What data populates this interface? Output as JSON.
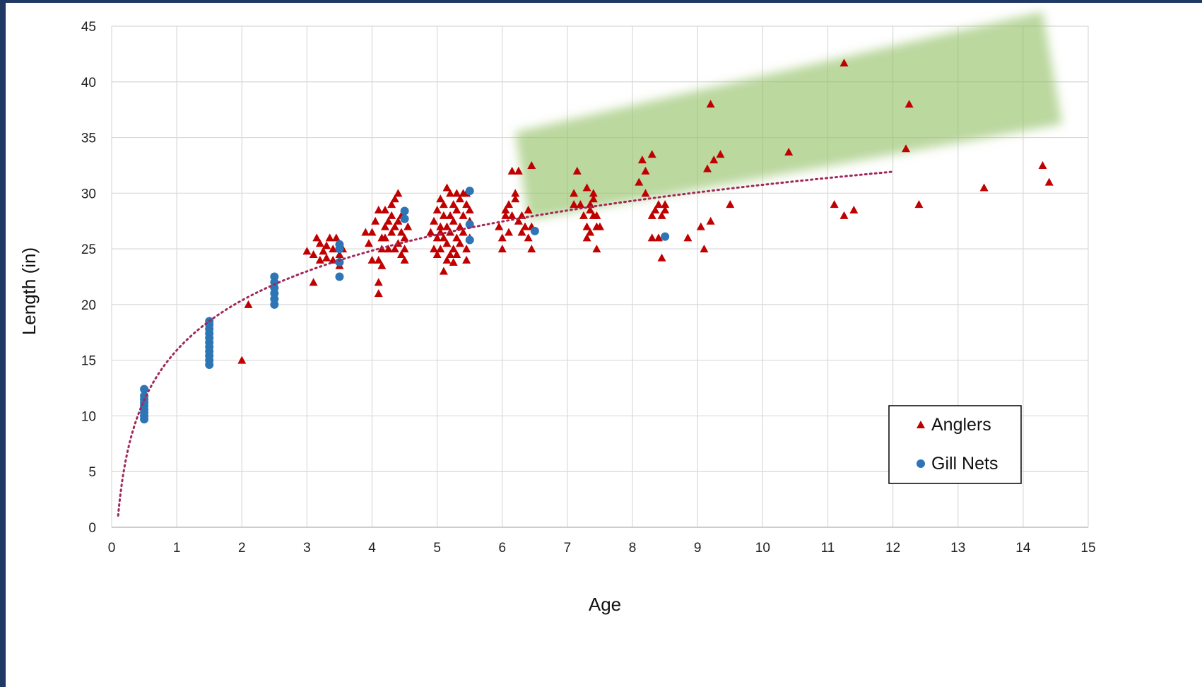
{
  "chart_data": {
    "type": "scatter",
    "title": "",
    "xlabel": "Age",
    "ylabel": "Length (in)",
    "xlim": [
      0,
      15
    ],
    "ylim": [
      0,
      45
    ],
    "xticks": [
      "0",
      "1",
      "2",
      "3",
      "4",
      "5",
      "6",
      "7",
      "8",
      "9",
      "10",
      "11",
      "12",
      "13",
      "14",
      "15"
    ],
    "yticks": [
      "0",
      "5",
      "10",
      "15",
      "20",
      "25",
      "30",
      "35",
      "40",
      "45"
    ],
    "grid": true,
    "legend": {
      "placement": "bottom-right",
      "entries": [
        "Anglers",
        "Gill Nets"
      ]
    },
    "colors": {
      "anglers": "#c00000",
      "gill_nets": "#2e75b6",
      "trendline": "#a0285a",
      "highlight": "#92c064"
    },
    "trendline": {
      "type": "logarithmic",
      "style": "dotted",
      "x_range": [
        0.1,
        12
      ]
    },
    "highlight_band": {
      "color": "#92c064",
      "corners": [
        [
          6.2,
          35.5
        ],
        [
          14.3,
          46.3
        ],
        [
          14.6,
          36.2
        ],
        [
          6.4,
          27.6
        ]
      ]
    },
    "series": [
      {
        "name": "Anglers",
        "marker": "triangle",
        "points": [
          [
            2,
            15
          ],
          [
            2.1,
            20
          ],
          [
            3,
            24.8
          ],
          [
            3.1,
            22
          ],
          [
            3.1,
            24.5
          ],
          [
            3.15,
            26
          ],
          [
            3.2,
            25.5
          ],
          [
            3.2,
            24
          ],
          [
            3.25,
            24.8
          ],
          [
            3.3,
            25.3
          ],
          [
            3.3,
            24.2
          ],
          [
            3.35,
            26
          ],
          [
            3.4,
            25
          ],
          [
            3.4,
            24
          ],
          [
            3.45,
            26
          ],
          [
            3.5,
            24.5
          ],
          [
            3.5,
            23.5
          ],
          [
            3.55,
            25
          ],
          [
            3.9,
            26.5
          ],
          [
            3.95,
            25.5
          ],
          [
            4,
            26.5
          ],
          [
            4,
            24
          ],
          [
            4.05,
            27.5
          ],
          [
            4.1,
            28.5
          ],
          [
            4.1,
            22
          ],
          [
            4.1,
            21
          ],
          [
            4.1,
            24
          ],
          [
            4.15,
            26
          ],
          [
            4.15,
            25
          ],
          [
            4.2,
            27
          ],
          [
            4.2,
            28.5
          ],
          [
            4.2,
            26
          ],
          [
            4.25,
            25
          ],
          [
            4.25,
            27.5
          ],
          [
            4.3,
            26.5
          ],
          [
            4.3,
            28
          ],
          [
            4.35,
            27
          ],
          [
            4.35,
            29.5
          ],
          [
            4.35,
            25
          ],
          [
            4.4,
            27.5
          ],
          [
            4.4,
            30
          ],
          [
            4.4,
            25.5
          ],
          [
            4.45,
            26.5
          ],
          [
            4.45,
            28
          ],
          [
            4.45,
            24.5
          ],
          [
            4.5,
            25
          ],
          [
            4.5,
            24
          ],
          [
            4.5,
            26
          ],
          [
            4.55,
            27
          ],
          [
            4.3,
            29
          ],
          [
            4.15,
            23.5
          ],
          [
            4.9,
            26.5
          ],
          [
            4.95,
            27.5
          ],
          [
            5,
            24.5
          ],
          [
            5,
            26
          ],
          [
            5,
            28.5
          ],
          [
            5.05,
            25
          ],
          [
            5.05,
            27
          ],
          [
            5.05,
            29.5
          ],
          [
            5.1,
            23
          ],
          [
            5.1,
            26
          ],
          [
            5.1,
            28
          ],
          [
            5.1,
            29
          ],
          [
            5.15,
            24
          ],
          [
            5.15,
            27
          ],
          [
            5.15,
            30.5
          ],
          [
            5.15,
            25.5
          ],
          [
            5.2,
            28
          ],
          [
            5.2,
            26.5
          ],
          [
            5.2,
            30
          ],
          [
            5.2,
            24.5
          ],
          [
            5.25,
            29
          ],
          [
            5.25,
            27.5
          ],
          [
            5.25,
            25
          ],
          [
            5.3,
            28.5
          ],
          [
            5.3,
            26
          ],
          [
            5.3,
            30
          ],
          [
            5.3,
            24.5
          ],
          [
            5.35,
            29.5
          ],
          [
            5.35,
            27
          ],
          [
            5.35,
            25.5
          ],
          [
            5.4,
            28
          ],
          [
            5.4,
            26.5
          ],
          [
            5.4,
            30
          ],
          [
            5.45,
            25
          ],
          [
            5.45,
            29
          ],
          [
            5.45,
            24
          ],
          [
            5.5,
            27.5
          ],
          [
            5.5,
            26
          ],
          [
            5.5,
            28.5
          ],
          [
            5.45,
            30
          ],
          [
            5.05,
            26.5
          ],
          [
            5.25,
            23.8
          ],
          [
            4.95,
            25
          ],
          [
            5.95,
            27
          ],
          [
            6,
            25
          ],
          [
            6,
            26
          ],
          [
            6.05,
            28.5
          ],
          [
            6.05,
            28
          ],
          [
            6.1,
            29
          ],
          [
            6.1,
            26.5
          ],
          [
            6.15,
            28
          ],
          [
            6.15,
            32
          ],
          [
            6.2,
            29.5
          ],
          [
            6.2,
            30
          ],
          [
            6.25,
            32
          ],
          [
            6.25,
            27.5
          ],
          [
            6.3,
            26.5
          ],
          [
            6.3,
            28
          ],
          [
            6.35,
            27
          ],
          [
            6.4,
            26
          ],
          [
            6.4,
            28.5
          ],
          [
            6.45,
            25
          ],
          [
            6.45,
            27
          ],
          [
            6.45,
            32.5
          ],
          [
            7.1,
            29
          ],
          [
            7.1,
            30
          ],
          [
            7.15,
            32
          ],
          [
            7.2,
            29
          ],
          [
            7.25,
            28
          ],
          [
            7.3,
            27
          ],
          [
            7.3,
            26
          ],
          [
            7.3,
            30.5
          ],
          [
            7.35,
            28.5
          ],
          [
            7.35,
            29
          ],
          [
            7.35,
            26.5
          ],
          [
            7.4,
            29.5
          ],
          [
            7.4,
            28
          ],
          [
            7.4,
            30
          ],
          [
            7.45,
            28
          ],
          [
            7.45,
            27
          ],
          [
            7.45,
            25
          ],
          [
            7.5,
            27
          ],
          [
            8.1,
            31
          ],
          [
            8.15,
            33
          ],
          [
            8.2,
            30
          ],
          [
            8.2,
            32
          ],
          [
            8.3,
            33.5
          ],
          [
            8.3,
            28
          ],
          [
            8.3,
            26
          ],
          [
            8.35,
            28.5
          ],
          [
            8.4,
            29
          ],
          [
            8.4,
            26
          ],
          [
            8.45,
            28
          ],
          [
            8.45,
            24.2
          ],
          [
            8.5,
            29
          ],
          [
            8.5,
            28.5
          ],
          [
            8.85,
            26
          ],
          [
            9.05,
            27
          ],
          [
            9.1,
            25
          ],
          [
            9.15,
            32.2
          ],
          [
            9.2,
            27.5
          ],
          [
            9.2,
            38
          ],
          [
            9.25,
            33
          ],
          [
            9.35,
            33.5
          ],
          [
            9.5,
            29
          ],
          [
            10.4,
            33.7
          ],
          [
            11.1,
            29
          ],
          [
            11.25,
            28
          ],
          [
            11.25,
            41.7
          ],
          [
            11.4,
            28.5
          ],
          [
            12.2,
            34
          ],
          [
            12.25,
            38
          ],
          [
            12.4,
            29
          ],
          [
            13.4,
            30.5
          ],
          [
            14.3,
            32.5
          ],
          [
            14.4,
            31
          ]
        ]
      },
      {
        "name": "Gill Nets",
        "marker": "circle",
        "points": [
          [
            0.5,
            9.7
          ],
          [
            0.5,
            10
          ],
          [
            0.5,
            10.3
          ],
          [
            0.5,
            10.6
          ],
          [
            0.5,
            10.9
          ],
          [
            0.5,
            11.2
          ],
          [
            0.5,
            11.5
          ],
          [
            0.5,
            11.8
          ],
          [
            0.5,
            12.4
          ],
          [
            1.5,
            14.6
          ],
          [
            1.5,
            15
          ],
          [
            1.5,
            15.4
          ],
          [
            1.5,
            15.8
          ],
          [
            1.5,
            16.2
          ],
          [
            1.5,
            16.6
          ],
          [
            1.5,
            17
          ],
          [
            1.5,
            17.4
          ],
          [
            1.5,
            17.8
          ],
          [
            1.5,
            18.2
          ],
          [
            1.5,
            18.5
          ],
          [
            2.5,
            20
          ],
          [
            2.5,
            20.5
          ],
          [
            2.5,
            21
          ],
          [
            2.5,
            21.5
          ],
          [
            2.5,
            22
          ],
          [
            2.5,
            22.5
          ],
          [
            3.5,
            22.5
          ],
          [
            3.5,
            23.8
          ],
          [
            3.5,
            25
          ],
          [
            3.5,
            25.4
          ],
          [
            4.5,
            27.7
          ],
          [
            4.5,
            28.4
          ],
          [
            5.5,
            25.8
          ],
          [
            5.5,
            27.2
          ],
          [
            5.5,
            30.2
          ],
          [
            6.5,
            26.6
          ],
          [
            8.5,
            26.1
          ]
        ]
      }
    ]
  }
}
